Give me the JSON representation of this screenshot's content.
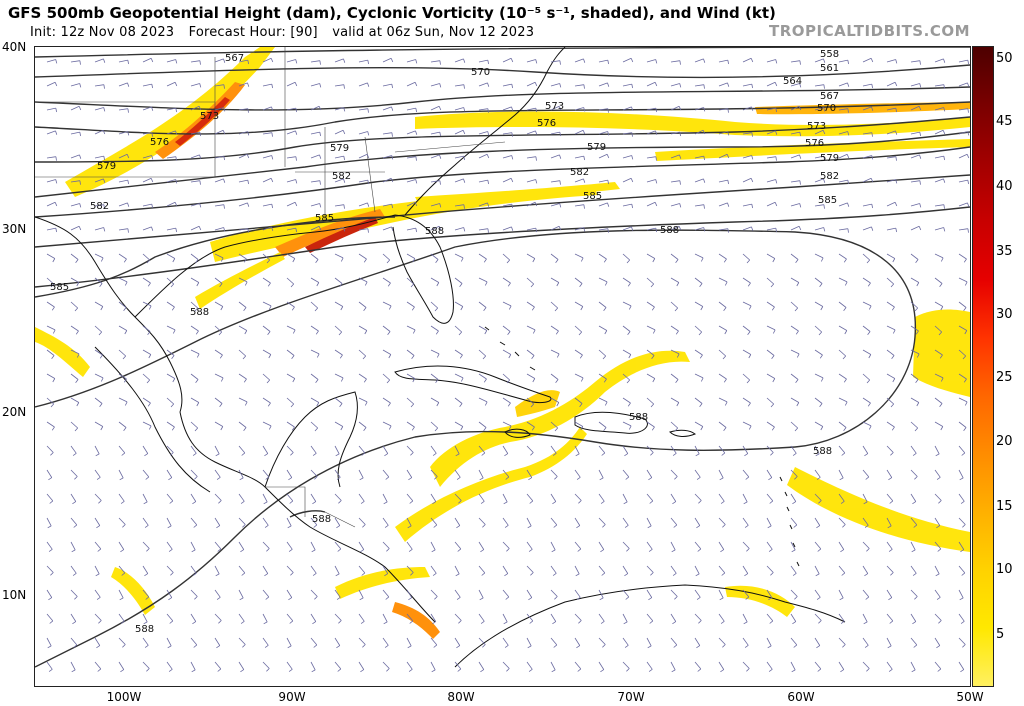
{
  "header": {
    "title": "GFS 500mb Geopotential Height (dam), Cyclonic Vorticity (10⁻⁵ s⁻¹, shaded), and Wind (kt)",
    "init": "Init: 12z Nov 08 2023",
    "forecast_hour": "Forecast Hour: [90]",
    "valid": "valid at 06z Sun, Nov 12 2023",
    "brand": "TROPICALTIDBITS.COM"
  },
  "axes": {
    "lat_labels": [
      "40N",
      "30N",
      "20N",
      "10N"
    ],
    "lon_labels": [
      "100W",
      "90W",
      "80W",
      "70W",
      "60W",
      "50W"
    ]
  },
  "colorbar": {
    "labels": [
      "50",
      "45",
      "40",
      "35",
      "30",
      "25",
      "20",
      "15",
      "10",
      "5"
    ],
    "colors": [
      "#4d0000",
      "#7a0000",
      "#a30000",
      "#c80000",
      "#e60000",
      "#ff3300",
      "#ff6600",
      "#ff8c00",
      "#ffb000",
      "#ffd200",
      "#ffe800",
      "#fff060"
    ]
  },
  "contours": {
    "labels": [
      "558",
      "561",
      "564",
      "567",
      "570",
      "573",
      "576",
      "579",
      "582",
      "585",
      "588"
    ]
  },
  "map_labels": {
    "c567a": "567",
    "c573a": "573",
    "c576a": "576",
    "c579a": "579",
    "c582a": "582",
    "c585a": "585",
    "c588a": "588",
    "c579b": "579",
    "c582b": "582",
    "c585b": "585",
    "c588b": "588",
    "c558": "558",
    "c561": "561",
    "c564": "564",
    "c567b": "567",
    "c570b": "570",
    "c573b": "573",
    "c576b": "576",
    "c579c": "579",
    "c582c": "582",
    "c585c": "585",
    "c576c": "576",
    "c573c": "573",
    "c570a": "570",
    "c588c": "588",
    "c588d": "588",
    "c588e": "588",
    "c588f": "588",
    "c585d": "585"
  }
}
